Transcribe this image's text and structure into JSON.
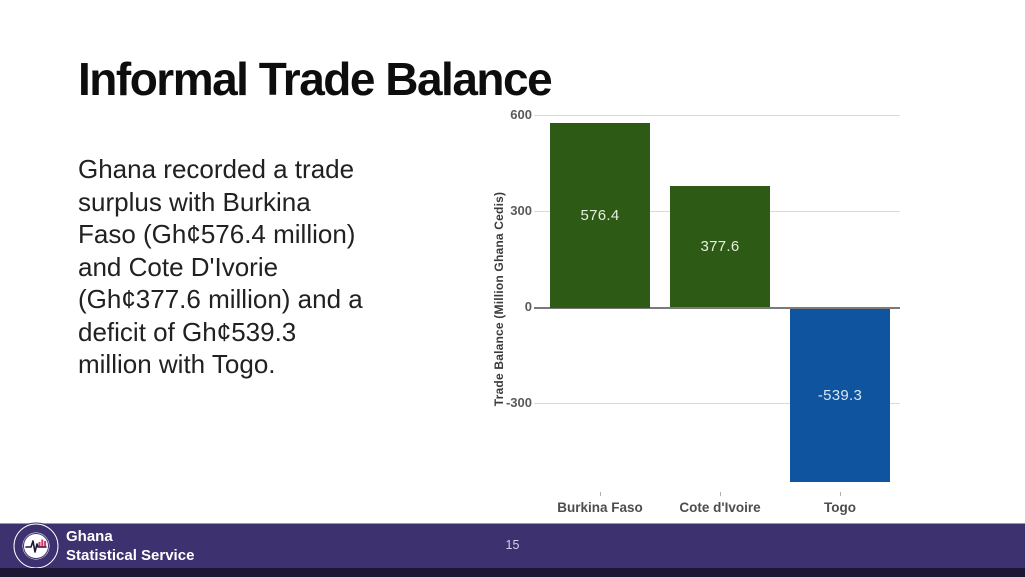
{
  "slide": {
    "title": "Informal Trade Balance",
    "body_lines": [
      "Ghana recorded a trade",
      "surplus with Burkina",
      "Faso (Gh¢576.4 million)",
      "and Cote D'Ivorie",
      "(Gh¢377.6 million) and a",
      "deficit of Gh¢539.3",
      "million with Togo."
    ],
    "page_number": "15"
  },
  "footer": {
    "org_name_line1": "Ghana",
    "org_name_line2": "Statistical Service",
    "bar_color": "#3d3170",
    "strip_color": "#1b1735",
    "logo_icon": "gss-seal-logo",
    "logo_accent_color": "#d6336c"
  },
  "chart_data": {
    "type": "bar",
    "title": "",
    "categories": [
      "Burkina Faso",
      "Cote d'Ivoire",
      "Togo"
    ],
    "values": [
      576.4,
      377.6,
      -539.3
    ],
    "data_labels": [
      "576.4",
      "377.6",
      "-539.3"
    ],
    "bar_colors": [
      "#2d5a14",
      "#2d5a14",
      "#0e549e"
    ],
    "bar_label_colors": [
      "#e8eee0",
      "#e8eee0",
      "#d8e6f4"
    ],
    "xlabel": "",
    "ylabel": "Trade Balance (Million Ghana Cedis)",
    "yticks": [
      600,
      300,
      0,
      -300
    ],
    "ylim": [
      -540,
      600
    ],
    "grid": "horizontal",
    "legend": "none",
    "grid_color": "#dbdbdb",
    "zero_line_color": "#7a7a7a"
  }
}
